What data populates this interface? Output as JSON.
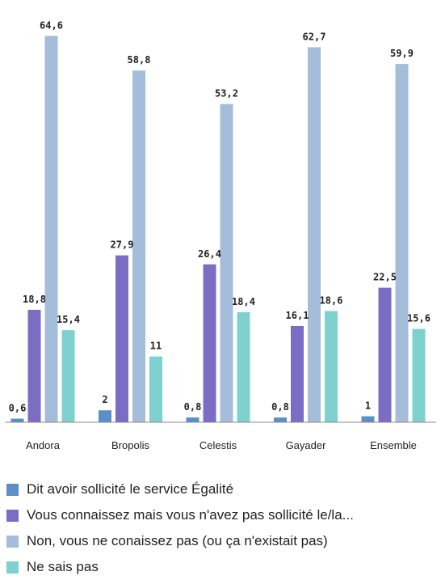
{
  "chart_data": {
    "type": "bar",
    "categories": [
      "Andora",
      "Bropolis",
      "Celestis",
      "Gayader",
      "Ensemble"
    ],
    "series": [
      {
        "name": "Dit avoir sollicité le service Égalité",
        "values": [
          "0,6",
          "2",
          "0,8",
          "0,8",
          "1"
        ],
        "color": "#5b8fc7"
      },
      {
        "name": "Vous connaissez mais vous n'avez pas sollicité le/la...",
        "values": [
          "18,8",
          "27,9",
          "26,4",
          "16,1",
          "22,5"
        ],
        "color": "#7b6cc4"
      },
      {
        "name": "Non, vous ne conaissez pas (ou ça n'existait pas)",
        "values": [
          "64,6",
          "58,8",
          "53,2",
          "62,7",
          "59,9"
        ],
        "color": "#a3bddb"
      },
      {
        "name": "Ne sais pas",
        "values": [
          "15,4",
          "11",
          "18,4",
          "18,6",
          "15,6"
        ],
        "color": "#7fd1cf"
      }
    ],
    "ylim": [
      0,
      66
    ],
    "grid": false,
    "legend": "bottom"
  }
}
